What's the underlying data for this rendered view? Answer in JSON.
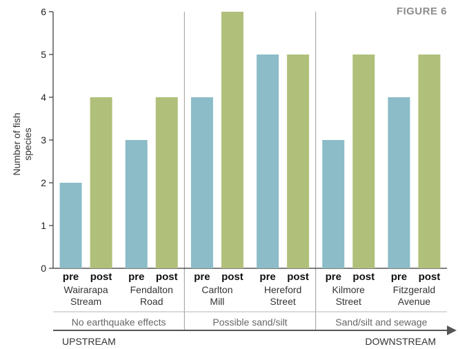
{
  "figure_label": "FIGURE 6",
  "chart_data": {
    "type": "bar",
    "title": "",
    "ylabel": "Number of fish species",
    "ylim": [
      0,
      6
    ],
    "yticks": [
      0,
      1,
      2,
      3,
      4,
      5,
      6
    ],
    "bar_labels": [
      "pre",
      "post"
    ],
    "categories": [
      "Wairarapa Stream",
      "Fendalton Road",
      "Carlton Mill",
      "Hereford Street",
      "Kilmore Street",
      "Fitzgerald Avenue"
    ],
    "category_lines": [
      [
        "Wairarapa",
        "Stream"
      ],
      [
        "Fendalton",
        "Road"
      ],
      [
        "Carlton",
        "Mill"
      ],
      [
        "Hereford",
        "Street"
      ],
      [
        "Kilmore",
        "Street"
      ],
      [
        "Fitzgerald",
        "Avenue"
      ]
    ],
    "series": [
      {
        "name": "pre",
        "values": [
          2,
          3,
          4,
          5,
          3,
          4
        ],
        "color": "#8bbcc7"
      },
      {
        "name": "post",
        "values": [
          4,
          4,
          6,
          5,
          5,
          5
        ],
        "color": "#b0c07b"
      }
    ],
    "groups": [
      {
        "label": "No earthquake effects",
        "categories": 2
      },
      {
        "label": "Possible sand/silt",
        "categories": 2
      },
      {
        "label": "Sand/silt and sewage",
        "categories": 2
      }
    ],
    "direction": {
      "start": "UPSTREAM",
      "end": "DOWNSTREAM"
    },
    "colors": {
      "pre": "#8bbcc7",
      "post": "#b0c07b",
      "axis": "#333333",
      "divider": "#999999",
      "arrow": "#555555"
    }
  }
}
